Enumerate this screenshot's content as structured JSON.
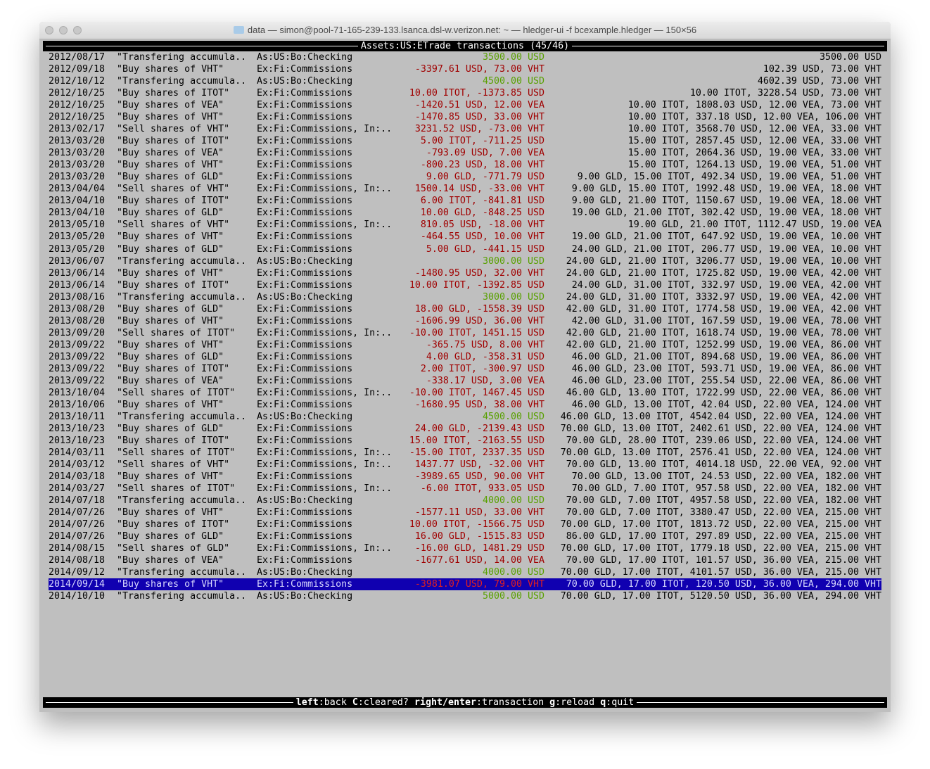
{
  "window": {
    "title": "data — simon@pool-71-165-239-133.lsanca.dsl-w.verizon.net: ~ — hledger-ui -f bcexample.hledger — 150×56"
  },
  "header": {
    "account": "Assets:US:ETrade",
    "label": "transactions",
    "count": "(45/46)"
  },
  "rows": [
    [
      "2012/08/17",
      "\"Transfering accumula..",
      "As:US:Bo:Checking",
      "3500.00 USD",
      "3500.00 USD",
      "pos"
    ],
    [
      "2012/09/18",
      "\"Buy shares of VHT\"",
      "Ex:Fi:Commissions",
      "-3397.61 USD, 73.00 VHT",
      "102.39 USD, 73.00 VHT",
      "neg"
    ],
    [
      "2012/10/12",
      "\"Transfering accumula..",
      "As:US:Bo:Checking",
      "4500.00 USD",
      "4602.39 USD, 73.00 VHT",
      "pos"
    ],
    [
      "2012/10/25",
      "\"Buy shares of ITOT\"",
      "Ex:Fi:Commissions",
      "10.00 ITOT, -1373.85 USD",
      "10.00 ITOT, 3228.54 USD, 73.00 VHT",
      "neg"
    ],
    [
      "2012/10/25",
      "\"Buy shares of VEA\"",
      "Ex:Fi:Commissions",
      "-1420.51 USD, 12.00 VEA",
      "10.00 ITOT, 1808.03 USD, 12.00 VEA, 73.00 VHT",
      "neg"
    ],
    [
      "2012/10/25",
      "\"Buy shares of VHT\"",
      "Ex:Fi:Commissions",
      "-1470.85 USD, 33.00 VHT",
      "10.00 ITOT, 337.18 USD, 12.00 VEA, 106.00 VHT",
      "neg"
    ],
    [
      "2013/02/17",
      "\"Sell shares of VHT\"",
      "Ex:Fi:Commissions, In:..",
      "3231.52 USD, -73.00 VHT",
      "10.00 ITOT, 3568.70 USD, 12.00 VEA, 33.00 VHT",
      "neg"
    ],
    [
      "2013/03/20",
      "\"Buy shares of ITOT\"",
      "Ex:Fi:Commissions",
      "5.00 ITOT, -711.25 USD",
      "15.00 ITOT, 2857.45 USD, 12.00 VEA, 33.00 VHT",
      "neg"
    ],
    [
      "2013/03/20",
      "\"Buy shares of VEA\"",
      "Ex:Fi:Commissions",
      "-793.09 USD, 7.00 VEA",
      "15.00 ITOT, 2064.36 USD, 19.00 VEA, 33.00 VHT",
      "neg"
    ],
    [
      "2013/03/20",
      "\"Buy shares of VHT\"",
      "Ex:Fi:Commissions",
      "-800.23 USD, 18.00 VHT",
      "15.00 ITOT, 1264.13 USD, 19.00 VEA, 51.00 VHT",
      "neg"
    ],
    [
      "2013/03/20",
      "\"Buy shares of GLD\"",
      "Ex:Fi:Commissions",
      "9.00 GLD, -771.79 USD",
      "9.00 GLD, 15.00 ITOT, 492.34 USD, 19.00 VEA, 51.00 VHT",
      "neg"
    ],
    [
      "2013/04/04",
      "\"Sell shares of VHT\"",
      "Ex:Fi:Commissions, In:..",
      "1500.14 USD, -33.00 VHT",
      "9.00 GLD, 15.00 ITOT, 1992.48 USD, 19.00 VEA, 18.00 VHT",
      "neg"
    ],
    [
      "2013/04/10",
      "\"Buy shares of ITOT\"",
      "Ex:Fi:Commissions",
      "6.00 ITOT, -841.81 USD",
      "9.00 GLD, 21.00 ITOT, 1150.67 USD, 19.00 VEA, 18.00 VHT",
      "neg"
    ],
    [
      "2013/04/10",
      "\"Buy shares of GLD\"",
      "Ex:Fi:Commissions",
      "10.00 GLD, -848.25 USD",
      "19.00 GLD, 21.00 ITOT, 302.42 USD, 19.00 VEA, 18.00 VHT",
      "neg"
    ],
    [
      "2013/05/10",
      "\"Sell shares of VHT\"",
      "Ex:Fi:Commissions, In:..",
      "810.05 USD, -18.00 VHT",
      "19.00 GLD, 21.00 ITOT, 1112.47 USD, 19.00 VEA",
      "neg"
    ],
    [
      "2013/05/20",
      "\"Buy shares of VHT\"",
      "Ex:Fi:Commissions",
      "-464.55 USD, 10.00 VHT",
      "19.00 GLD, 21.00 ITOT, 647.92 USD, 19.00 VEA, 10.00 VHT",
      "neg"
    ],
    [
      "2013/05/20",
      "\"Buy shares of GLD\"",
      "Ex:Fi:Commissions",
      "5.00 GLD, -441.15 USD",
      "24.00 GLD, 21.00 ITOT, 206.77 USD, 19.00 VEA, 10.00 VHT",
      "neg"
    ],
    [
      "2013/06/07",
      "\"Transfering accumula..",
      "As:US:Bo:Checking",
      "3000.00 USD",
      "24.00 GLD, 21.00 ITOT, 3206.77 USD, 19.00 VEA, 10.00 VHT",
      "pos"
    ],
    [
      "2013/06/14",
      "\"Buy shares of VHT\"",
      "Ex:Fi:Commissions",
      "-1480.95 USD, 32.00 VHT",
      "24.00 GLD, 21.00 ITOT, 1725.82 USD, 19.00 VEA, 42.00 VHT",
      "neg"
    ],
    [
      "2013/06/14",
      "\"Buy shares of ITOT\"",
      "Ex:Fi:Commissions",
      "10.00 ITOT, -1392.85 USD",
      "24.00 GLD, 31.00 ITOT, 332.97 USD, 19.00 VEA, 42.00 VHT",
      "neg"
    ],
    [
      "2013/08/16",
      "\"Transfering accumula..",
      "As:US:Bo:Checking",
      "3000.00 USD",
      "24.00 GLD, 31.00 ITOT, 3332.97 USD, 19.00 VEA, 42.00 VHT",
      "pos"
    ],
    [
      "2013/08/20",
      "\"Buy shares of GLD\"",
      "Ex:Fi:Commissions",
      "18.00 GLD, -1558.39 USD",
      "42.00 GLD, 31.00 ITOT, 1774.58 USD, 19.00 VEA, 42.00 VHT",
      "neg"
    ],
    [
      "2013/08/20",
      "\"Buy shares of VHT\"",
      "Ex:Fi:Commissions",
      "-1606.99 USD, 36.00 VHT",
      "42.00 GLD, 31.00 ITOT, 167.59 USD, 19.00 VEA, 78.00 VHT",
      "neg"
    ],
    [
      "2013/09/20",
      "\"Sell shares of ITOT\"",
      "Ex:Fi:Commissions, In:..",
      "-10.00 ITOT, 1451.15 USD",
      "42.00 GLD, 21.00 ITOT, 1618.74 USD, 19.00 VEA, 78.00 VHT",
      "neg"
    ],
    [
      "2013/09/22",
      "\"Buy shares of VHT\"",
      "Ex:Fi:Commissions",
      "-365.75 USD, 8.00 VHT",
      "42.00 GLD, 21.00 ITOT, 1252.99 USD, 19.00 VEA, 86.00 VHT",
      "neg"
    ],
    [
      "2013/09/22",
      "\"Buy shares of GLD\"",
      "Ex:Fi:Commissions",
      "4.00 GLD, -358.31 USD",
      "46.00 GLD, 21.00 ITOT, 894.68 USD, 19.00 VEA, 86.00 VHT",
      "neg"
    ],
    [
      "2013/09/22",
      "\"Buy shares of ITOT\"",
      "Ex:Fi:Commissions",
      "2.00 ITOT, -300.97 USD",
      "46.00 GLD, 23.00 ITOT, 593.71 USD, 19.00 VEA, 86.00 VHT",
      "neg"
    ],
    [
      "2013/09/22",
      "\"Buy shares of VEA\"",
      "Ex:Fi:Commissions",
      "-338.17 USD, 3.00 VEA",
      "46.00 GLD, 23.00 ITOT, 255.54 USD, 22.00 VEA, 86.00 VHT",
      "neg"
    ],
    [
      "2013/10/04",
      "\"Sell shares of ITOT\"",
      "Ex:Fi:Commissions, In:..",
      "-10.00 ITOT, 1467.45 USD",
      "46.00 GLD, 13.00 ITOT, 1722.99 USD, 22.00 VEA, 86.00 VHT",
      "neg"
    ],
    [
      "2013/10/06",
      "\"Buy shares of VHT\"",
      "Ex:Fi:Commissions",
      "-1680.95 USD, 38.00 VHT",
      "46.00 GLD, 13.00 ITOT, 42.04 USD, 22.00 VEA, 124.00 VHT",
      "neg"
    ],
    [
      "2013/10/11",
      "\"Transfering accumula..",
      "As:US:Bo:Checking",
      "4500.00 USD",
      "46.00 GLD, 13.00 ITOT, 4542.04 USD, 22.00 VEA, 124.00 VHT",
      "pos"
    ],
    [
      "2013/10/23",
      "\"Buy shares of GLD\"",
      "Ex:Fi:Commissions",
      "24.00 GLD, -2139.43 USD",
      "70.00 GLD, 13.00 ITOT, 2402.61 USD, 22.00 VEA, 124.00 VHT",
      "neg"
    ],
    [
      "2013/10/23",
      "\"Buy shares of ITOT\"",
      "Ex:Fi:Commissions",
      "15.00 ITOT, -2163.55 USD",
      "70.00 GLD, 28.00 ITOT, 239.06 USD, 22.00 VEA, 124.00 VHT",
      "neg"
    ],
    [
      "2014/03/11",
      "\"Sell shares of ITOT\"",
      "Ex:Fi:Commissions, In:..",
      "-15.00 ITOT, 2337.35 USD",
      "70.00 GLD, 13.00 ITOT, 2576.41 USD, 22.00 VEA, 124.00 VHT",
      "neg"
    ],
    [
      "2014/03/12",
      "\"Sell shares of VHT\"",
      "Ex:Fi:Commissions, In:..",
      "1437.77 USD, -32.00 VHT",
      "70.00 GLD, 13.00 ITOT, 4014.18 USD, 22.00 VEA, 92.00 VHT",
      "neg"
    ],
    [
      "2014/03/18",
      "\"Buy shares of VHT\"",
      "Ex:Fi:Commissions",
      "-3989.65 USD, 90.00 VHT",
      "70.00 GLD, 13.00 ITOT, 24.53 USD, 22.00 VEA, 182.00 VHT",
      "neg"
    ],
    [
      "2014/03/27",
      "\"Sell shares of ITOT\"",
      "Ex:Fi:Commissions, In:..",
      "-6.00 ITOT, 933.05 USD",
      "70.00 GLD, 7.00 ITOT, 957.58 USD, 22.00 VEA, 182.00 VHT",
      "neg"
    ],
    [
      "2014/07/18",
      "\"Transfering accumula..",
      "As:US:Bo:Checking",
      "4000.00 USD",
      "70.00 GLD, 7.00 ITOT, 4957.58 USD, 22.00 VEA, 182.00 VHT",
      "pos"
    ],
    [
      "2014/07/26",
      "\"Buy shares of VHT\"",
      "Ex:Fi:Commissions",
      "-1577.11 USD, 33.00 VHT",
      "70.00 GLD, 7.00 ITOT, 3380.47 USD, 22.00 VEA, 215.00 VHT",
      "neg"
    ],
    [
      "2014/07/26",
      "\"Buy shares of ITOT\"",
      "Ex:Fi:Commissions",
      "10.00 ITOT, -1566.75 USD",
      "70.00 GLD, 17.00 ITOT, 1813.72 USD, 22.00 VEA, 215.00 VHT",
      "neg"
    ],
    [
      "2014/07/26",
      "\"Buy shares of GLD\"",
      "Ex:Fi:Commissions",
      "16.00 GLD, -1515.83 USD",
      "86.00 GLD, 17.00 ITOT, 297.89 USD, 22.00 VEA, 215.00 VHT",
      "neg"
    ],
    [
      "2014/08/15",
      "\"Sell shares of GLD\"",
      "Ex:Fi:Commissions, In:..",
      "-16.00 GLD, 1481.29 USD",
      "70.00 GLD, 17.00 ITOT, 1779.18 USD, 22.00 VEA, 215.00 VHT",
      "neg"
    ],
    [
      "2014/08/18",
      "\"Buy shares of VEA\"",
      "Ex:Fi:Commissions",
      "-1677.61 USD, 14.00 VEA",
      "70.00 GLD, 17.00 ITOT, 101.57 USD, 36.00 VEA, 215.00 VHT",
      "neg"
    ],
    [
      "2014/09/12",
      "\"Transfering accumula..",
      "As:US:Bo:Checking",
      "4000.00 USD",
      "70.00 GLD, 17.00 ITOT, 4101.57 USD, 36.00 VEA, 215.00 VHT",
      "pos"
    ],
    [
      "2014/09/14",
      "\"Buy shares of VHT\"",
      "Ex:Fi:Commissions",
      "-3981.07 USD, 79.00 VHT",
      "70.00 GLD, 17.00 ITOT, 120.50 USD, 36.00 VEA, 294.00 VHT",
      "neg"
    ],
    [
      "2014/10/10",
      "\"Transfering accumula..",
      "As:US:Bo:Checking",
      "5000.00 USD",
      "70.00 GLD, 17.00 ITOT, 5120.50 USD, 36.00 VEA, 294.00 VHT",
      "pos"
    ]
  ],
  "selected_index": 44,
  "footer": {
    "k1": "left",
    "d1": "back",
    "k2": "C",
    "d2": "cleared?",
    "k3": "right/enter",
    "d3": "transaction",
    "k4": "g",
    "d4": "reload",
    "k5": "q",
    "d5": "quit"
  },
  "colors": {
    "background": "#bfbfbf",
    "selected": "#1000b0",
    "negative": "#a00000",
    "positive": "#58a000"
  }
}
